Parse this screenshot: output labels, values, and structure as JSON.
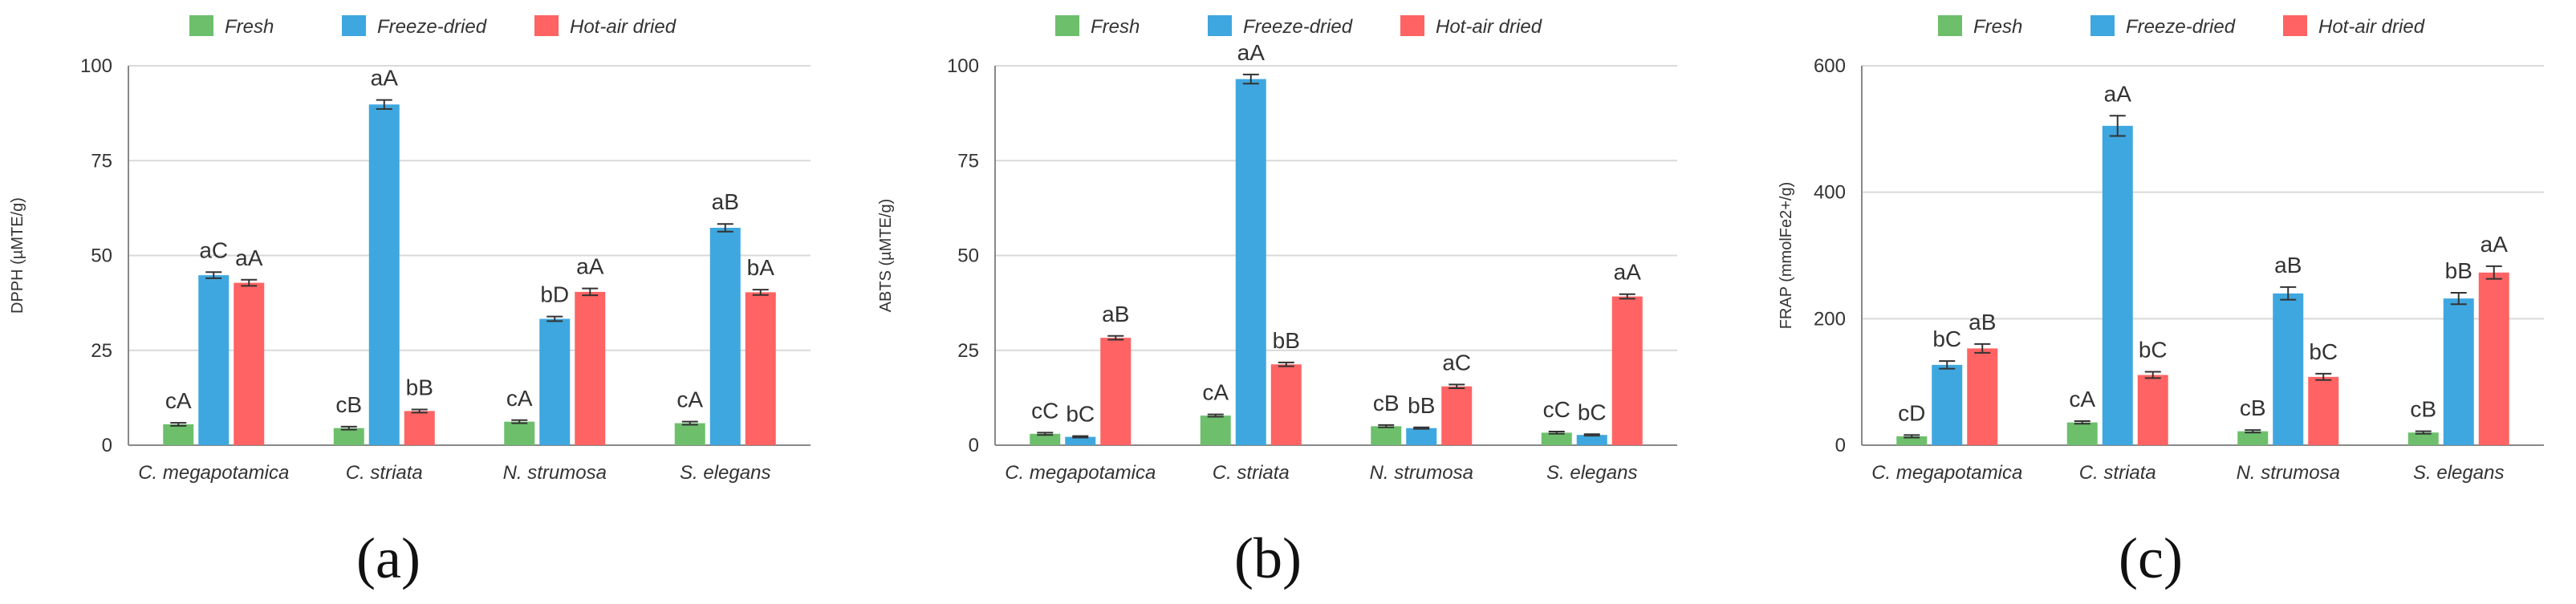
{
  "colors": {
    "Fresh": "#6dbf6c",
    "Freeze-dried": "#3fa7df",
    "Hot-air dried": "#ff6363"
  },
  "chart_data": [
    {
      "type": "bar",
      "panel_label": "(a)",
      "ylabel": "DPPH (µMTE/g)",
      "ylim": [
        0,
        100
      ],
      "yticks": [
        0,
        25,
        50,
        75,
        100
      ],
      "categories": [
        "C. megapotamica",
        "C. striata",
        "N. strumosa",
        "S. elegans"
      ],
      "legend": "top",
      "series": [
        {
          "name": "Fresh",
          "values": [
            5.5,
            4.5,
            6.2,
            5.8
          ],
          "errors": [
            0.4,
            0.4,
            0.4,
            0.4
          ],
          "labels": [
            "cA",
            "cB",
            "cA",
            "cA"
          ]
        },
        {
          "name": "Freeze-dried",
          "values": [
            44.8,
            89.8,
            33.3,
            57.3
          ],
          "errors": [
            0.8,
            1.2,
            0.6,
            1.0
          ],
          "labels": [
            "aC",
            "aA",
            "bD",
            "aB"
          ]
        },
        {
          "name": "Hot-air dried",
          "values": [
            42.8,
            9.0,
            40.4,
            40.3
          ],
          "errors": [
            0.8,
            0.4,
            0.9,
            0.7
          ],
          "labels": [
            "aA",
            "bB",
            "aA",
            "bA"
          ]
        }
      ]
    },
    {
      "type": "bar",
      "panel_label": "(b)",
      "ylabel": "ABTS (µMTE/g)",
      "ylim": [
        0,
        100
      ],
      "yticks": [
        0,
        25,
        50,
        75,
        100
      ],
      "categories": [
        "C. megapotamica",
        "C. striata",
        "N. strumosa",
        "S. elegans"
      ],
      "legend": "top",
      "series": [
        {
          "name": "Fresh",
          "values": [
            3.0,
            7.8,
            5.0,
            3.3
          ],
          "errors": [
            0.3,
            0.3,
            0.3,
            0.3
          ],
          "labels": [
            "cC",
            "cA",
            "cB",
            "cC"
          ]
        },
        {
          "name": "Freeze-dried",
          "values": [
            2.2,
            96.5,
            4.5,
            2.7
          ],
          "errors": [
            0.2,
            1.2,
            0.2,
            0.2
          ],
          "labels": [
            "bC",
            "aA",
            "bB",
            "bC"
          ]
        },
        {
          "name": "Hot-air dried",
          "values": [
            28.3,
            21.3,
            15.5,
            39.2
          ],
          "errors": [
            0.5,
            0.5,
            0.5,
            0.6
          ],
          "labels": [
            "aB",
            "bB",
            "aC",
            "aA"
          ]
        }
      ]
    },
    {
      "type": "bar",
      "panel_label": "(c)",
      "ylabel": "FRAP (mmolFe2+/g)",
      "ylim": [
        0,
        600
      ],
      "yticks": [
        0,
        200,
        400,
        600
      ],
      "categories": [
        "C. megapotamica",
        "C. striata",
        "N. strumosa",
        "S. elegans"
      ],
      "legend": "top",
      "series": [
        {
          "name": "Fresh",
          "values": [
            14,
            36,
            22,
            20
          ],
          "errors": [
            2,
            2,
            2,
            2
          ],
          "labels": [
            "cD",
            "cA",
            "cB",
            "cB"
          ]
        },
        {
          "name": "Freeze-dried",
          "values": [
            127,
            505,
            240,
            232
          ],
          "errors": [
            6,
            16,
            10,
            9
          ],
          "labels": [
            "bC",
            "aA",
            "aB",
            "bB"
          ]
        },
        {
          "name": "Hot-air dried",
          "values": [
            153,
            111,
            108,
            273
          ],
          "errors": [
            7,
            5,
            5,
            10
          ],
          "labels": [
            "aB",
            "bC",
            "bC",
            "aA"
          ]
        }
      ]
    }
  ]
}
